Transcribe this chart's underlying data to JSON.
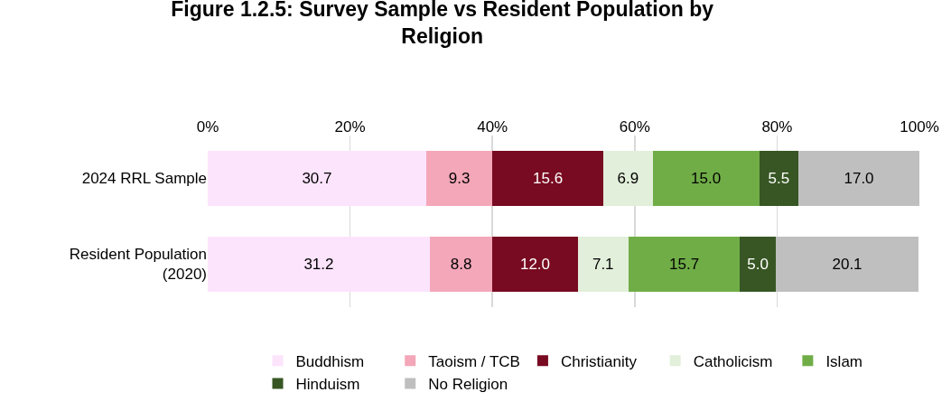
{
  "chart_data": {
    "type": "bar",
    "title": "Figure 1.2.5: Survey Sample vs Resident Population by Religion",
    "orientation": "horizontal",
    "stacked": true,
    "categories": [
      "2024 RRL Sample",
      "Resident Population (2020)"
    ],
    "series": [
      {
        "name": "Buddhism",
        "color": "#fce4fc",
        "values": [
          30.7,
          31.2
        ],
        "value_labels": [
          "30.7",
          "31.2"
        ]
      },
      {
        "name": "Taoism / TCB",
        "color": "#f4a7b9",
        "values": [
          9.3,
          8.8
        ],
        "value_labels": [
          "9.3",
          "8.8"
        ]
      },
      {
        "name": "Christianity",
        "color": "#780a21",
        "values": [
          15.6,
          12.0
        ],
        "value_labels": [
          "15.6",
          "12.0"
        ]
      },
      {
        "name": "Catholicism",
        "color": "#e2efda",
        "values": [
          6.9,
          7.1
        ],
        "value_labels": [
          "6.9",
          "7.1"
        ]
      },
      {
        "name": "Islam",
        "color": "#70ad47",
        "values": [
          15.0,
          15.7
        ],
        "value_labels": [
          "15.0",
          "15.7"
        ]
      },
      {
        "name": "Hinduism",
        "color": "#375623",
        "values": [
          5.5,
          5.0
        ],
        "value_labels": [
          "5.5",
          "5.0"
        ]
      },
      {
        "name": "No Religion",
        "color": "#bfbfbf",
        "values": [
          17.0,
          20.1
        ],
        "value_labels": [
          "17.0",
          "20.1"
        ]
      }
    ],
    "xlim": [
      0,
      100
    ],
    "xticks": [
      {
        "value": 0,
        "label": "0%"
      },
      {
        "value": 20,
        "label": "20%"
      },
      {
        "value": 40,
        "label": "40%"
      },
      {
        "value": 60,
        "label": "60%"
      },
      {
        "value": 80,
        "label": "80%"
      },
      {
        "value": 100,
        "label": "100%"
      }
    ],
    "grid": "x",
    "legend": "bottom"
  }
}
